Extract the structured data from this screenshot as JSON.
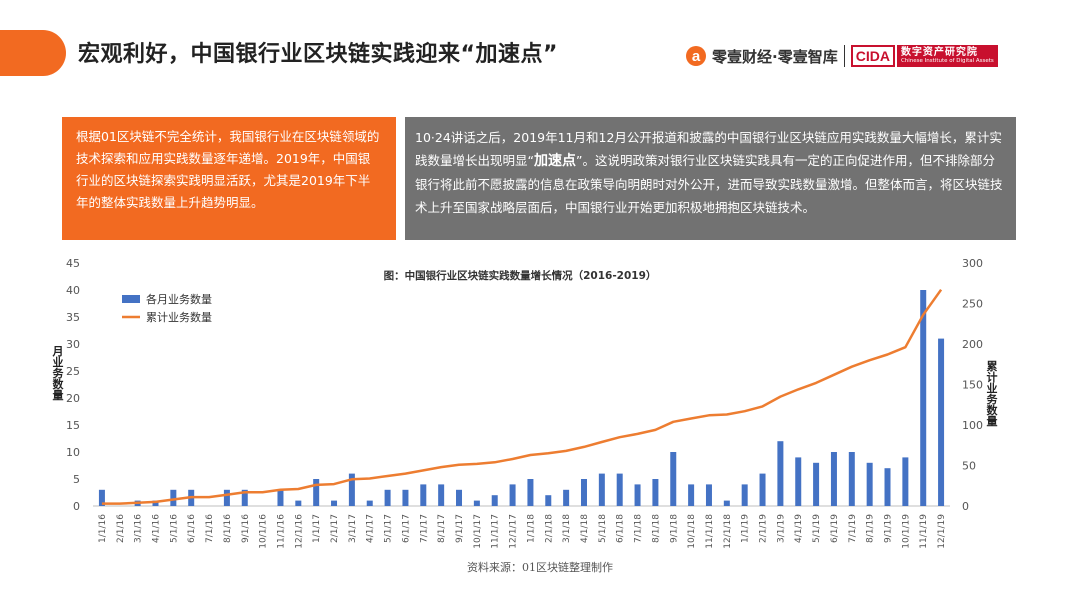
{
  "header": {
    "title": "宏观利好，中国银行业区块链实践迎来“加速点”",
    "brand_logo": "a",
    "brand_text": "零壹财经·零壹智库",
    "cida_mark": "CIDA",
    "cida_cn": "数字资产研究院",
    "cida_en": "Chinese Institute of Digital Assets"
  },
  "box_left": {
    "text": "根据01区块链不完全统计，我国银行业在区块链领域的技术探索和应用实践数量逐年递增。2019年，中国银行业的区块链探索实践明显活跃，尤其是2019年下半年的整体实践数量上升趋势明显。"
  },
  "box_right": {
    "text_a": "10·24讲话之后，2019年11月和12月公开报道和披露的中国银行业区块链应用实践数量大幅增长，累计实践数量增长出现明显“",
    "highlight": "加速点",
    "text_b": "”。这说明政策对银行业区块链实践具有一定的正向促进作用，但不排除部分银行将此前不愿披露的信息在政策导向明朗时对外公开，进而导致实践数量激增。但整体而言，将区块链技术上升至国家战略层面后，中国银行业开始更加积极地拥抱区块链技术。"
  },
  "chart_data": {
    "type": "bar",
    "title": "图：中国银行业区块链实践数量增长情况（2016-2019）",
    "categories": [
      "1/1/16",
      "2/1/16",
      "3/1/16",
      "4/1/16",
      "5/1/16",
      "6/1/16",
      "7/1/16",
      "8/1/16",
      "9/1/16",
      "10/1/16",
      "11/1/16",
      "12/1/16",
      "1/1/17",
      "2/1/17",
      "3/1/17",
      "4/1/17",
      "5/1/17",
      "6/1/17",
      "7/1/17",
      "8/1/17",
      "9/1/17",
      "10/1/17",
      "11/1/17",
      "12/1/17",
      "1/1/18",
      "2/1/18",
      "3/1/18",
      "4/1/18",
      "5/1/18",
      "6/1/18",
      "7/1/18",
      "8/1/18",
      "9/1/18",
      "10/1/18",
      "11/1/18",
      "12/1/18",
      "1/1/19",
      "2/1/19",
      "3/1/19",
      "4/1/19",
      "5/1/19",
      "6/1/19",
      "7/1/19",
      "8/1/19",
      "9/1/19",
      "10/1/19",
      "11/1/19",
      "12/1/19"
    ],
    "series": [
      {
        "name": "各月业务数量",
        "axis": "left",
        "color": "#4472c4",
        "values": [
          3,
          0,
          1,
          1,
          3,
          3,
          0,
          3,
          3,
          0,
          3,
          1,
          5,
          1,
          6,
          1,
          3,
          3,
          4,
          4,
          3,
          1,
          2,
          4,
          5,
          2,
          3,
          5,
          6,
          6,
          4,
          5,
          10,
          4,
          4,
          1,
          4,
          6,
          12,
          9,
          8,
          10,
          10,
          8,
          7,
          9,
          40,
          31
        ]
      },
      {
        "name": "累计业务数量",
        "axis": "right",
        "color": "#ed7d31",
        "values": [
          3,
          3,
          4,
          5,
          8,
          11,
          11,
          14,
          17,
          17,
          20,
          21,
          26,
          27,
          33,
          34,
          37,
          40,
          44,
          48,
          51,
          52,
          54,
          58,
          63,
          65,
          68,
          73,
          79,
          85,
          89,
          94,
          104,
          108,
          112,
          113,
          117,
          123,
          135,
          144,
          152,
          162,
          172,
          180,
          187,
          196,
          236,
          267
        ]
      }
    ],
    "ylabel": "月业务数量",
    "ylabel_right": "累计业务数量",
    "ylim": [
      0,
      45
    ],
    "ylim_right": [
      0,
      300
    ],
    "yticks": [
      0,
      5,
      10,
      15,
      20,
      25,
      30,
      35,
      40,
      45
    ],
    "yticks_right": [
      0,
      50,
      100,
      150,
      200,
      250,
      300
    ],
    "legend": "top-left",
    "grid": false
  },
  "source": "资料来源：01区块链整理制作"
}
